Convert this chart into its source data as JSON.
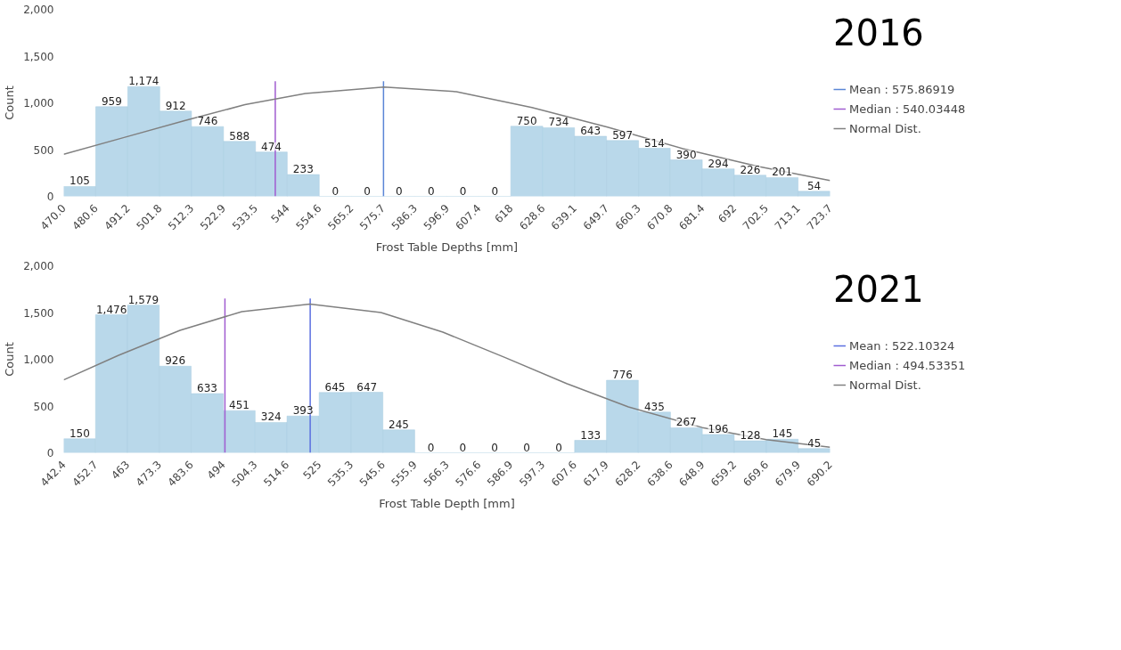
{
  "chart_data": [
    {
      "type": "histogram",
      "title": "2016",
      "xlabel": "Frost Table Depths [mm]",
      "ylabel": "Count",
      "bins": [
        470.0,
        480.6,
        491.2,
        501.8,
        512.3,
        522.9,
        533.5,
        544,
        554.6,
        565.2,
        575.7,
        586.3,
        596.9,
        607.4,
        618,
        628.6,
        639.1,
        649.7,
        660.3,
        670.8,
        681.4,
        692,
        702.5,
        713.1,
        723.7
      ],
      "values": [
        105,
        959,
        1174,
        912,
        746,
        588,
        474,
        233,
        0,
        0,
        0,
        0,
        0,
        0,
        750,
        734,
        643,
        597,
        514,
        390,
        294,
        226,
        201,
        54
      ],
      "value_labels": [
        "105",
        "959",
        "1,174",
        "912",
        "746",
        "588",
        "474",
        "233",
        "0",
        "0",
        "0",
        "0",
        "0",
        "0",
        "750",
        "734",
        "643",
        "597",
        "514",
        "390",
        "294",
        "226",
        "201",
        "54"
      ],
      "color": "#b9d8ea",
      "xlim": [
        470.0,
        723.7
      ],
      "xticks": [
        {
          "value": 470.0,
          "label": "470.0"
        },
        480.6,
        491.2,
        501.8,
        512.3,
        522.9,
        533.5,
        544,
        554.6,
        565.2,
        575.7,
        586.3,
        596.9,
        607.4,
        618,
        628.6,
        639.1,
        649.7,
        660.3,
        670.8,
        681.4,
        692,
        702.5,
        713.1,
        723.7
      ],
      "ylim": [
        0,
        2000
      ],
      "yticks": [
        {
          "value": 0,
          "label": "0"
        },
        {
          "value": 500,
          "label": "500"
        },
        {
          "value": 1000,
          "label": "1,000"
        },
        {
          "value": 1500,
          "label": "1,500"
        },
        {
          "value": 2000,
          "label": "2,000"
        }
      ],
      "series": [
        {
          "name": "Mean : 575.86919",
          "type": "line",
          "color": "#5b86d6",
          "x": [
            575.86919,
            575.86919
          ],
          "values": [
            0,
            1230
          ]
        },
        {
          "name": "Median : 540.03448",
          "type": "line",
          "color": "#a05cd0",
          "x": [
            540.03448,
            540.03448
          ],
          "values": [
            0,
            1230
          ]
        },
        {
          "name": "Normal Dist.",
          "type": "line",
          "color": "#808080",
          "x": [
            470,
            490,
            510,
            530,
            550,
            576,
            600,
            625,
            650,
            675,
            700,
            723.7
          ],
          "values": [
            450,
            630,
            810,
            980,
            1100,
            1170,
            1120,
            950,
            740,
            510,
            320,
            170
          ]
        }
      ],
      "legend": "right",
      "grid": false
    },
    {
      "type": "histogram",
      "title": "2021",
      "xlabel": "Frost Table Depth [mm]",
      "ylabel": "Count",
      "bins": [
        442.4,
        452.7,
        463,
        473.3,
        483.6,
        494,
        504.3,
        514.6,
        525,
        535.3,
        545.6,
        555.9,
        566.3,
        576.6,
        586.9,
        597.3,
        607.6,
        617.9,
        628.2,
        638.6,
        648.9,
        659.2,
        669.6,
        679.9,
        690.2
      ],
      "values": [
        150,
        1476,
        1579,
        926,
        633,
        451,
        324,
        393,
        645,
        647,
        245,
        0,
        0,
        0,
        0,
        0,
        133,
        776,
        435,
        267,
        196,
        128,
        145,
        45
      ],
      "value_labels": [
        "150",
        "1,476",
        "1,579",
        "926",
        "633",
        "451",
        "324",
        "393",
        "645",
        "647",
        "245",
        "0",
        "0",
        "0",
        "0",
        "0",
        "133",
        "776",
        "435",
        "267",
        "196",
        "128",
        "145",
        "45"
      ],
      "color": "#b9d8ea",
      "xlim": [
        442.4,
        690.2
      ],
      "xticks": [
        {
          "value": 442.4,
          "label": "442.4"
        },
        452.7,
        463,
        473.3,
        483.6,
        494,
        504.3,
        514.6,
        525,
        535.3,
        545.6,
        555.9,
        566.3,
        576.6,
        586.9,
        597.3,
        607.6,
        617.9,
        628.2,
        638.6,
        648.9,
        659.2,
        669.6,
        679.9,
        690.2
      ],
      "ylim": [
        0,
        2000
      ],
      "yticks": [
        {
          "value": 0,
          "label": "0"
        },
        {
          "value": 500,
          "label": "500"
        },
        {
          "value": 1000,
          "label": "1,000"
        },
        {
          "value": 1500,
          "label": "1,500"
        },
        {
          "value": 2000,
          "label": "2,000"
        }
      ],
      "series": [
        {
          "name": "Mean : 522.10324",
          "type": "line",
          "color": "#5b6fe0",
          "x": [
            522.10324,
            522.10324
          ],
          "values": [
            0,
            1650
          ]
        },
        {
          "name": "Median : 494.53351",
          "type": "line",
          "color": "#a05cd0",
          "x": [
            494.53351,
            494.53351
          ],
          "values": [
            0,
            1650
          ]
        },
        {
          "name": "Normal Dist.",
          "type": "line",
          "color": "#808080",
          "x": [
            442.4,
            460,
            480,
            500,
            522,
            545,
            565,
            585,
            605,
            625,
            648.9,
            669.6,
            690.2
          ],
          "values": [
            780,
            1040,
            1310,
            1510,
            1590,
            1500,
            1290,
            1020,
            740,
            490,
            270,
            140,
            60
          ]
        }
      ],
      "legend": "right",
      "grid": false
    }
  ]
}
